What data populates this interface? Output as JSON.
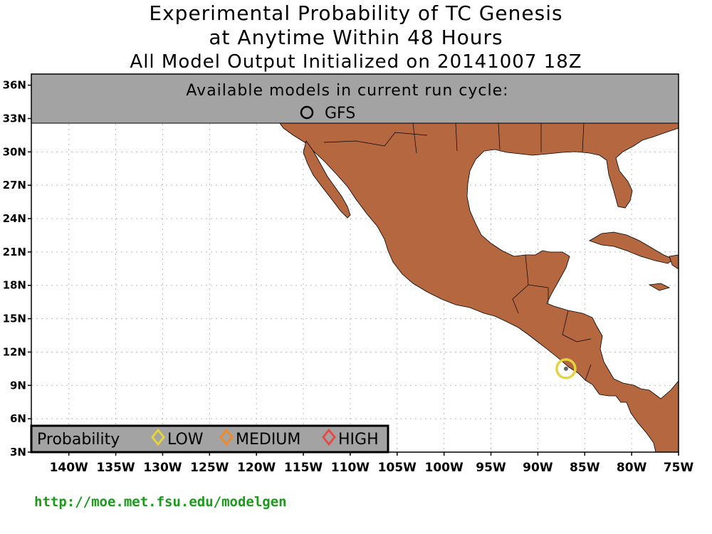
{
  "title": {
    "line1": "Experimental Probability of TC Genesis",
    "line2": "at Anytime Within 48 Hours",
    "line3": "All Model Output Initialized on 20141007 18Z"
  },
  "models_box": {
    "heading": "Available models in current run cycle:",
    "models": [
      {
        "name": "GFS",
        "symbol": "circle-icon"
      }
    ]
  },
  "map": {
    "lat_range": [
      3,
      37
    ],
    "lon_range": [
      -144,
      -75
    ],
    "lat_labels": [
      "3N",
      "6N",
      "9N",
      "12N",
      "15N",
      "18N",
      "21N",
      "24N",
      "27N",
      "30N",
      "33N",
      "36N"
    ],
    "lon_labels": [
      "140W",
      "135W",
      "130W",
      "125W",
      "120W",
      "115W",
      "110W",
      "105W",
      "100W",
      "95W",
      "90W",
      "85W",
      "80W",
      "75W"
    ],
    "gridlines": "dotted",
    "land_color": "#b5673f",
    "ocean_color": "#ffffff"
  },
  "genesis_points": [
    {
      "model": "GFS",
      "lat": 10.5,
      "lon": -87.0,
      "probability": "LOW",
      "ring_color": "#e3d53c"
    }
  ],
  "legend": {
    "title": "Probability",
    "items": [
      {
        "label": "LOW",
        "color": "#e3d53c"
      },
      {
        "label": "MEDIUM",
        "color": "#f08a2a"
      },
      {
        "label": "HIGH",
        "color": "#e84a4a"
      }
    ]
  },
  "footer": {
    "url": "http://moe.met.fsu.edu/modelgen"
  }
}
